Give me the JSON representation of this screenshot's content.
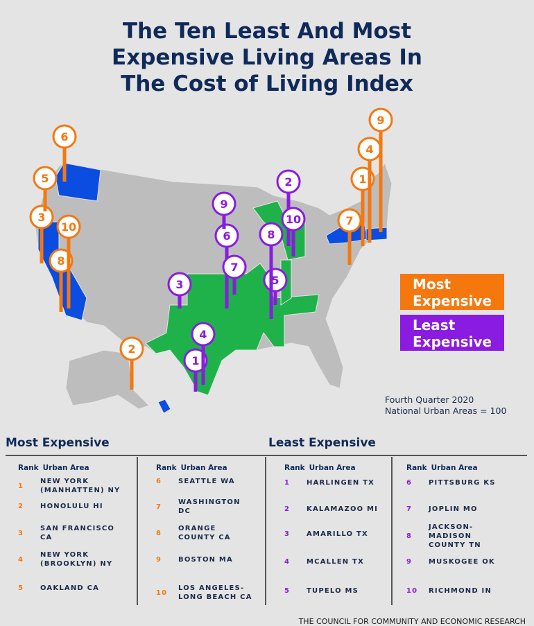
{
  "title": [
    "The Ten Least And Most",
    "Expensive Living Areas In",
    "The Cost of Living Index"
  ],
  "colors": {
    "title": "#0f2a5a",
    "most": "#f5780f",
    "least": "#8a1be0",
    "map_gray": "#bdbdbd",
    "map_blue": "#0a4de0",
    "map_green": "#1fb14a"
  },
  "legend": {
    "most": [
      "Most",
      "Expensive"
    ],
    "least": [
      "Least",
      "Expensive"
    ]
  },
  "note": [
    "Fourth Quarter 2020",
    "National  Urban Areas = 100"
  ],
  "map_pins": {
    "most": [
      "1",
      "2",
      "3",
      "4",
      "5",
      "6",
      "7",
      "8",
      "9",
      "10"
    ],
    "least": [
      "1",
      "2",
      "3",
      "4",
      "5",
      "6",
      "7",
      "8",
      "9",
      "10"
    ]
  },
  "tables": {
    "most": {
      "title": "Most Expensive",
      "rank_header": "Rank",
      "area_header": "Urban Area",
      "rows": [
        {
          "rank": "1",
          "area": [
            "NEW YORK",
            "(MANHATTEN) NY"
          ]
        },
        {
          "rank": "2",
          "area": [
            "HONOLULU HI"
          ]
        },
        {
          "rank": "3",
          "area": [
            "SAN FRANCISCO",
            "CA"
          ]
        },
        {
          "rank": "4",
          "area": [
            "NEW YORK",
            "(BROOKLYN) NY"
          ]
        },
        {
          "rank": "5",
          "area": [
            "OAKLAND CA"
          ]
        },
        {
          "rank": "6",
          "area": [
            "SEATTLE WA"
          ]
        },
        {
          "rank": "7",
          "area": [
            "WASHINGTON",
            "DC"
          ]
        },
        {
          "rank": "8",
          "area": [
            "ORANGE",
            "COUNTY CA"
          ]
        },
        {
          "rank": "9",
          "area": [
            "BOSTON MA"
          ]
        },
        {
          "rank": "10",
          "area": [
            "LOS ANGELES-",
            "LONG BEACH CA"
          ]
        }
      ]
    },
    "least": {
      "title": "Least Expensive",
      "rank_header": "Rank",
      "area_header": "Urban Area",
      "rows": [
        {
          "rank": "1",
          "area": [
            "HARLINGEN TX"
          ]
        },
        {
          "rank": "2",
          "area": [
            "KALAMAZOO MI"
          ]
        },
        {
          "rank": "3",
          "area": [
            "AMARILLO TX"
          ]
        },
        {
          "rank": "4",
          "area": [
            "MCALLEN TX"
          ]
        },
        {
          "rank": "5",
          "area": [
            "TUPELO MS"
          ]
        },
        {
          "rank": "6",
          "area": [
            "PITTSBURG KS"
          ]
        },
        {
          "rank": "7",
          "area": [
            "JOPLIN MO"
          ]
        },
        {
          "rank": "8",
          "area": [
            "JACKSON-",
            "MADISON",
            "COUNTY TN"
          ]
        },
        {
          "rank": "9",
          "area": [
            "MUSKOGEE OK"
          ]
        },
        {
          "rank": "10",
          "area": [
            "RICHMOND IN"
          ]
        }
      ]
    }
  },
  "footer": "THE COUNCIL FOR COMMUNITY AND ECONOMIC RESEARCH"
}
